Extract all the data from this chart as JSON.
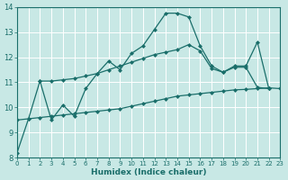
{
  "xlabel": "Humidex (Indice chaleur)",
  "xlim": [
    0,
    23
  ],
  "ylim": [
    8,
    14
  ],
  "yticks": [
    8,
    9,
    10,
    11,
    12,
    13,
    14
  ],
  "xticks": [
    0,
    1,
    2,
    3,
    4,
    5,
    6,
    7,
    8,
    9,
    10,
    11,
    12,
    13,
    14,
    15,
    16,
    17,
    18,
    19,
    20,
    21,
    22,
    23
  ],
  "bg_color": "#c8e8e5",
  "grid_color": "#ffffff",
  "line_color": "#1a6e6a",
  "line1_x": [
    0,
    1,
    2,
    3,
    4,
    5,
    6,
    7,
    8,
    9,
    10,
    11,
    12,
    13,
    14,
    15,
    16,
    17,
    18,
    19,
    20,
    21,
    22
  ],
  "line1_y": [
    8.2,
    9.55,
    11.05,
    9.5,
    10.1,
    9.65,
    10.75,
    11.35,
    11.85,
    11.5,
    12.15,
    12.45,
    13.1,
    13.75,
    13.75,
    13.6,
    12.45,
    11.65,
    11.4,
    11.65,
    11.65,
    12.6,
    10.75
  ],
  "line2_x": [
    2,
    3,
    4,
    5,
    6,
    7,
    8,
    9,
    10,
    11,
    12,
    13,
    14,
    15,
    16,
    17,
    18,
    19,
    20,
    21,
    22
  ],
  "line2_y": [
    11.05,
    11.05,
    11.1,
    11.15,
    11.25,
    11.35,
    11.5,
    11.65,
    11.8,
    11.95,
    12.1,
    12.2,
    12.3,
    12.5,
    12.25,
    11.55,
    11.4,
    11.6,
    11.6,
    10.8,
    10.75
  ],
  "line3_x": [
    0,
    1,
    2,
    3,
    4,
    5,
    6,
    7,
    8,
    9,
    10,
    11,
    12,
    13,
    14,
    15,
    16,
    17,
    18,
    19,
    20,
    21,
    22,
    23
  ],
  "line3_y": [
    9.5,
    9.55,
    9.6,
    9.65,
    9.7,
    9.75,
    9.8,
    9.85,
    9.9,
    9.95,
    10.05,
    10.15,
    10.25,
    10.35,
    10.45,
    10.5,
    10.55,
    10.6,
    10.65,
    10.7,
    10.72,
    10.75,
    10.78,
    10.75
  ]
}
